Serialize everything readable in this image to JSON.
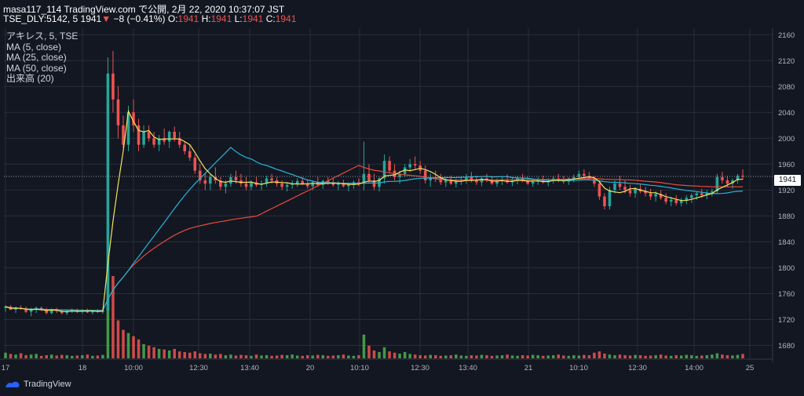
{
  "header": {
    "line1": "masa117_114 TradingView.com で公開, 2月 22, 2020 10:37:07 JST",
    "symbol": "TSE_DLY:5142, 5",
    "last": "1941",
    "change": "−8 (−0.41%)",
    "o_label": "O:",
    "o_val": "1941",
    "h_label": "H:",
    "h_val": "1941",
    "l_label": "L:",
    "l_val": "1941",
    "c_label": "C:",
    "c_val": "1941"
  },
  "legend": {
    "title": "アキレス, 5, TSE",
    "ma5": "MA (5, close)",
    "ma25": "MA (25, close)",
    "ma50": "MA (50, close)",
    "volume": "出来高 (20)"
  },
  "current_price_label": "1941",
  "footer": {
    "brand": "TradingView"
  },
  "colors": {
    "background": "#131722",
    "grid": "#2a2e39",
    "up": "#26a69a",
    "down": "#ef5350",
    "ma5": "#f5e35b",
    "ma25": "#26b5d6",
    "ma50": "#e84b3c",
    "vol_up": "#4caf50",
    "vol_down": "#ef5350"
  },
  "chart_data": {
    "type": "candlestick",
    "ylim": [
      1660,
      2170
    ],
    "y_ticks": [
      1680,
      1720,
      1760,
      1800,
      1840,
      1880,
      1920,
      1960,
      2000,
      2040,
      2080,
      2120,
      2160
    ],
    "x_ticks": [
      "17",
      "18",
      "10:00",
      "12:30",
      "13:40",
      "20",
      "10:10",
      "12:30",
      "13:40",
      "21",
      "10:10",
      "12:30",
      "14:00",
      "25"
    ],
    "current_price": 1941,
    "candles": [
      [
        1738,
        1742,
        1732,
        1740
      ],
      [
        1740,
        1742,
        1735,
        1735
      ],
      [
        1735,
        1740,
        1730,
        1738
      ],
      [
        1738,
        1742,
        1735,
        1736
      ],
      [
        1736,
        1740,
        1730,
        1732
      ],
      [
        1732,
        1738,
        1725,
        1735
      ],
      [
        1735,
        1740,
        1730,
        1738
      ],
      [
        1738,
        1740,
        1733,
        1735
      ],
      [
        1735,
        1738,
        1728,
        1730
      ],
      [
        1730,
        1737,
        1728,
        1735
      ],
      [
        1735,
        1738,
        1730,
        1733
      ],
      [
        1733,
        1736,
        1728,
        1730
      ],
      [
        1730,
        1735,
        1727,
        1733
      ],
      [
        1733,
        1737,
        1730,
        1735
      ],
      [
        1735,
        1737,
        1730,
        1732
      ],
      [
        1732,
        1736,
        1729,
        1734
      ],
      [
        1734,
        1737,
        1730,
        1731
      ],
      [
        1731,
        1735,
        1728,
        1733
      ],
      [
        1733,
        1736,
        1730,
        1732
      ],
      [
        1732,
        1735,
        1729,
        1734
      ],
      [
        1734,
        2125,
        1734,
        2100
      ],
      [
        2100,
        2135,
        2040,
        2060
      ],
      [
        2060,
        2080,
        2000,
        2020
      ],
      [
        2020,
        2035,
        1985,
        1990
      ],
      [
        1990,
        2050,
        1980,
        2040
      ],
      [
        2040,
        2060,
        2010,
        2020
      ],
      [
        2020,
        2030,
        1980,
        1990
      ],
      [
        1990,
        2020,
        1985,
        2010
      ],
      [
        2010,
        2020,
        1995,
        2000
      ],
      [
        2000,
        2010,
        1985,
        1990
      ],
      [
        1990,
        2005,
        1980,
        2000
      ],
      [
        2000,
        2015,
        1990,
        1995
      ],
      [
        1995,
        2012,
        1985,
        2010
      ],
      [
        2010,
        2018,
        1995,
        2000
      ],
      [
        2000,
        2010,
        1985,
        1990
      ],
      [
        1990,
        1995,
        1975,
        1980
      ],
      [
        1980,
        1990,
        1965,
        1970
      ],
      [
        1970,
        1975,
        1945,
        1950
      ],
      [
        1950,
        1960,
        1930,
        1935
      ],
      [
        1935,
        1945,
        1920,
        1930
      ],
      [
        1930,
        1945,
        1920,
        1940
      ],
      [
        1940,
        1955,
        1930,
        1935
      ],
      [
        1935,
        1940,
        1920,
        1925
      ],
      [
        1925,
        1935,
        1915,
        1930
      ],
      [
        1930,
        1945,
        1925,
        1940
      ],
      [
        1940,
        1950,
        1930,
        1935
      ],
      [
        1935,
        1945,
        1925,
        1930
      ],
      [
        1930,
        1940,
        1920,
        1925
      ],
      [
        1925,
        1935,
        1920,
        1932
      ],
      [
        1932,
        1940,
        1925,
        1928
      ],
      [
        1928,
        1935,
        1920,
        1930
      ],
      [
        1930,
        1942,
        1925,
        1938
      ],
      [
        1938,
        1945,
        1930,
        1935
      ],
      [
        1935,
        1940,
        1925,
        1930
      ],
      [
        1930,
        1935,
        1920,
        1925
      ],
      [
        1925,
        1932,
        1918,
        1928
      ],
      [
        1928,
        1935,
        1922,
        1930
      ],
      [
        1930,
        1938,
        1925,
        1934
      ],
      [
        1934,
        1940,
        1928,
        1930
      ],
      [
        1930,
        1935,
        1922,
        1926
      ],
      [
        1926,
        1935,
        1920,
        1932
      ],
      [
        1932,
        1940,
        1925,
        1928
      ],
      [
        1928,
        1936,
        1922,
        1934
      ],
      [
        1934,
        1940,
        1928,
        1932
      ],
      [
        1932,
        1938,
        1925,
        1928
      ],
      [
        1928,
        1934,
        1920,
        1930
      ],
      [
        1930,
        1936,
        1924,
        1926
      ],
      [
        1926,
        1932,
        1918,
        1928
      ],
      [
        1928,
        1935,
        1922,
        1932
      ],
      [
        1932,
        1938,
        1926,
        1930
      ],
      [
        1930,
        1995,
        1920,
        1945
      ],
      [
        1945,
        1960,
        1930,
        1935
      ],
      [
        1935,
        1945,
        1920,
        1925
      ],
      [
        1925,
        1940,
        1918,
        1938
      ],
      [
        1938,
        1975,
        1930,
        1965
      ],
      [
        1965,
        1972,
        1945,
        1950
      ],
      [
        1950,
        1960,
        1935,
        1940
      ],
      [
        1940,
        1950,
        1930,
        1945
      ],
      [
        1945,
        1960,
        1940,
        1955
      ],
      [
        1955,
        1968,
        1948,
        1960
      ],
      [
        1960,
        1972,
        1952,
        1958
      ],
      [
        1958,
        1965,
        1945,
        1950
      ],
      [
        1950,
        1958,
        1930,
        1935
      ],
      [
        1935,
        1945,
        1925,
        1940
      ],
      [
        1940,
        1950,
        1932,
        1938
      ],
      [
        1938,
        1945,
        1928,
        1932
      ],
      [
        1932,
        1940,
        1925,
        1935
      ],
      [
        1935,
        1942,
        1928,
        1930
      ],
      [
        1930,
        1938,
        1924,
        1934
      ],
      [
        1934,
        1940,
        1928,
        1936
      ],
      [
        1936,
        1945,
        1930,
        1940
      ],
      [
        1940,
        1948,
        1932,
        1935
      ],
      [
        1935,
        1942,
        1928,
        1932
      ],
      [
        1932,
        1940,
        1926,
        1938
      ],
      [
        1938,
        1945,
        1932,
        1935
      ],
      [
        1935,
        1942,
        1928,
        1930
      ],
      [
        1930,
        1938,
        1925,
        1934
      ],
      [
        1934,
        1940,
        1928,
        1936
      ],
      [
        1936,
        1944,
        1930,
        1932
      ],
      [
        1932,
        1940,
        1926,
        1935
      ],
      [
        1935,
        1942,
        1929,
        1938
      ],
      [
        1938,
        1945,
        1932,
        1934
      ],
      [
        1934,
        1940,
        1928,
        1930
      ],
      [
        1930,
        1937,
        1925,
        1933
      ],
      [
        1933,
        1940,
        1928,
        1936
      ],
      [
        1936,
        1942,
        1930,
        1932
      ],
      [
        1932,
        1938,
        1926,
        1935
      ],
      [
        1935,
        1942,
        1930,
        1938
      ],
      [
        1938,
        1945,
        1932,
        1936
      ],
      [
        1936,
        1942,
        1930,
        1933
      ],
      [
        1933,
        1940,
        1928,
        1937
      ],
      [
        1937,
        1944,
        1932,
        1940
      ],
      [
        1940,
        1950,
        1935,
        1945
      ],
      [
        1945,
        1952,
        1938,
        1942
      ],
      [
        1942,
        1948,
        1935,
        1938
      ],
      [
        1938,
        1942,
        1925,
        1930
      ],
      [
        1930,
        1935,
        1905,
        1910
      ],
      [
        1910,
        1915,
        1890,
        1895
      ],
      [
        1895,
        1925,
        1890,
        1920
      ],
      [
        1920,
        1935,
        1915,
        1930
      ],
      [
        1930,
        1942,
        1920,
        1925
      ],
      [
        1925,
        1935,
        1915,
        1920
      ],
      [
        1920,
        1928,
        1910,
        1915
      ],
      [
        1915,
        1925,
        1908,
        1922
      ],
      [
        1922,
        1930,
        1915,
        1918
      ],
      [
        1918,
        1925,
        1910,
        1915
      ],
      [
        1915,
        1922,
        1905,
        1910
      ],
      [
        1910,
        1918,
        1902,
        1914
      ],
      [
        1914,
        1920,
        1905,
        1908
      ],
      [
        1908,
        1915,
        1898,
        1902
      ],
      [
        1902,
        1910,
        1895,
        1905
      ],
      [
        1905,
        1912,
        1896,
        1900
      ],
      [
        1900,
        1908,
        1895,
        1904
      ],
      [
        1904,
        1912,
        1898,
        1908
      ],
      [
        1908,
        1915,
        1900,
        1912
      ],
      [
        1912,
        1918,
        1905,
        1915
      ],
      [
        1915,
        1922,
        1908,
        1912
      ],
      [
        1912,
        1920,
        1906,
        1916
      ],
      [
        1916,
        1922,
        1910,
        1918
      ],
      [
        1918,
        1945,
        1915,
        1940
      ],
      [
        1940,
        1948,
        1930,
        1935
      ],
      [
        1935,
        1942,
        1925,
        1930
      ],
      [
        1930,
        1938,
        1922,
        1935
      ],
      [
        1935,
        1945,
        1930,
        1942
      ],
      [
        1942,
        1952,
        1936,
        1941
      ]
    ],
    "volume": [
      18,
      14,
      12,
      16,
      10,
      12,
      14,
      8,
      10,
      12,
      9,
      11,
      10,
      8,
      9,
      10,
      12,
      8,
      9,
      11,
      190,
      260,
      120,
      90,
      80,
      70,
      60,
      45,
      40,
      35,
      30,
      28,
      25,
      30,
      22,
      20,
      18,
      22,
      16,
      14,
      15,
      12,
      14,
      10,
      12,
      9,
      11,
      10,
      8,
      12,
      9,
      10,
      8,
      9,
      11,
      10,
      12,
      9,
      8,
      10,
      9,
      11,
      10,
      8,
      9,
      10,
      12,
      9,
      8,
      10,
      75,
      40,
      25,
      20,
      35,
      22,
      18,
      15,
      20,
      14,
      12,
      10,
      9,
      11,
      10,
      8,
      9,
      10,
      12,
      9,
      8,
      10,
      9,
      11,
      10,
      8,
      9,
      10,
      12,
      9,
      8,
      10,
      9,
      11,
      10,
      8,
      9,
      10,
      12,
      9,
      8,
      10,
      9,
      11,
      10,
      18,
      22,
      15,
      12,
      10,
      12,
      10,
      9,
      11,
      10,
      8,
      9,
      10,
      12,
      9,
      8,
      10,
      9,
      11,
      10,
      8,
      9,
      10,
      12,
      16,
      12,
      10,
      9,
      11,
      14
    ]
  }
}
